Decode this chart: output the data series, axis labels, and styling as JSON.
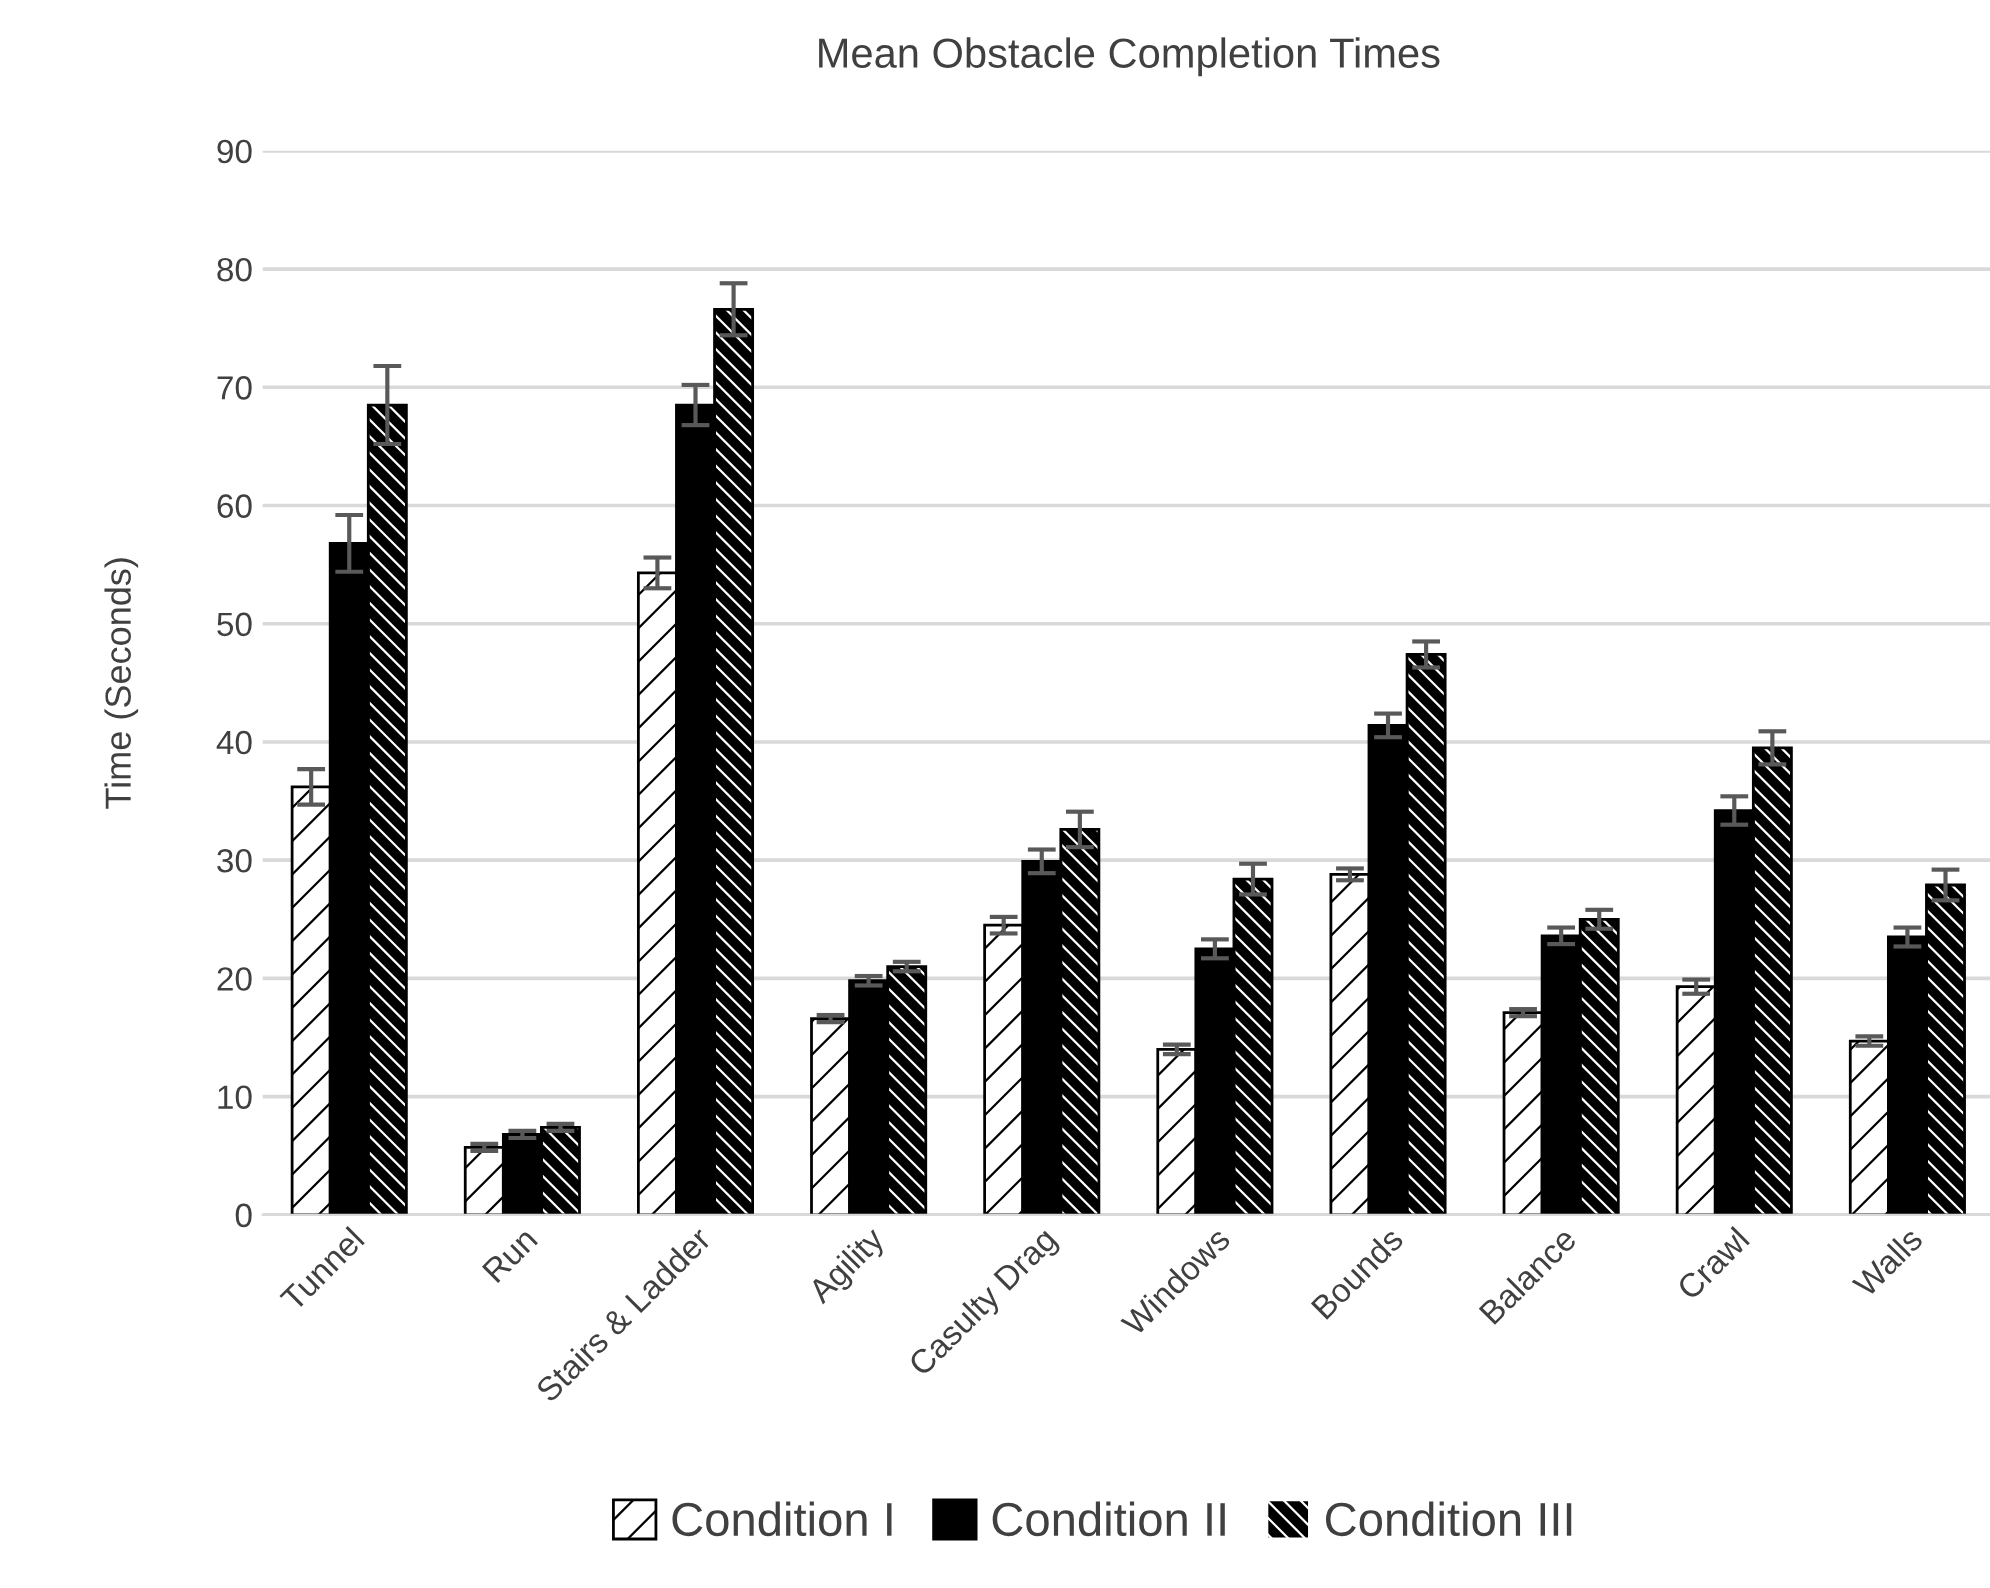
{
  "chart_data": {
    "type": "bar",
    "title": "Mean Obstacle Completion Times",
    "ylabel": "Time (Seconds)",
    "categories": [
      "Tunnel",
      "Run",
      "Stairs & Ladder",
      "Agility",
      "Casulty Drag",
      "Windows",
      "Bounds",
      "Balance",
      "Crawl",
      "Walls"
    ],
    "series": [
      {
        "name": "Condition I",
        "color": "#ffffff",
        "values": [
          36.2,
          5.7,
          54.3,
          16.6,
          24.5,
          14.0,
          28.8,
          17.1,
          19.3,
          14.7
        ],
        "errors": [
          1.5,
          0.3,
          1.3,
          0.3,
          0.7,
          0.4,
          0.5,
          0.3,
          0.6,
          0.4
        ]
      },
      {
        "name": "Condition II",
        "color": "#000000",
        "values": [
          56.8,
          6.8,
          68.5,
          19.8,
          29.9,
          22.5,
          41.4,
          23.6,
          34.2,
          23.5
        ],
        "errors": [
          2.4,
          0.3,
          1.7,
          0.4,
          1.0,
          0.8,
          1.0,
          0.7,
          1.2,
          0.8
        ]
      },
      {
        "name": "Condition III",
        "color": "#000000",
        "values": [
          68.5,
          7.4,
          76.6,
          21.0,
          32.6,
          28.4,
          47.4,
          25.0,
          39.5,
          27.9
        ],
        "errors": [
          3.3,
          0.3,
          2.2,
          0.4,
          1.5,
          1.3,
          1.1,
          0.8,
          1.4,
          1.3
        ]
      }
    ],
    "ylim": [
      0,
      90
    ],
    "yticks": [
      0,
      10,
      20,
      30,
      40,
      50,
      60,
      70,
      80,
      90
    ],
    "grid": "y",
    "legend": "bottom"
  }
}
